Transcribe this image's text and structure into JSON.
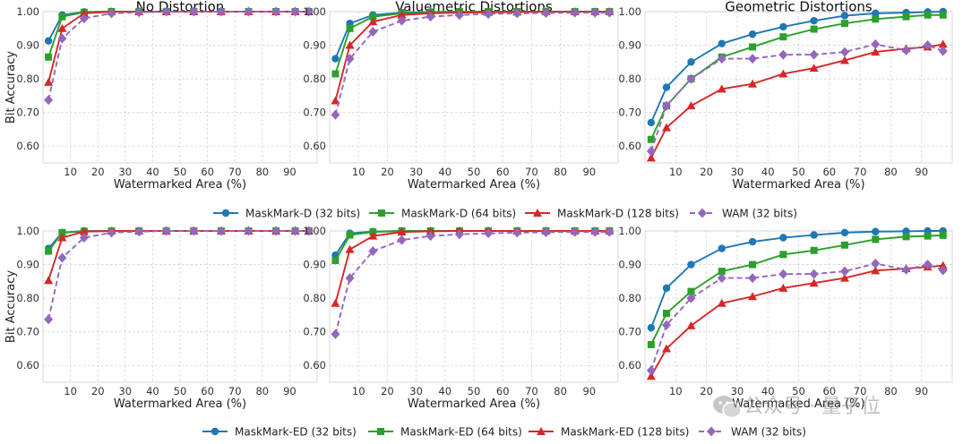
{
  "chart_data": [
    {
      "type": "line",
      "title": "No Distortion",
      "xlabel": "Watermarked Area (%)",
      "ylabel": "Bit Accuracy",
      "xlim": [
        0,
        100
      ],
      "ylim": [
        0.55,
        1.0
      ],
      "grid": true,
      "x": [
        2,
        7,
        15,
        25,
        35,
        45,
        55,
        65,
        75,
        85,
        92,
        97
      ],
      "xticks": [
        "10",
        "20",
        "30",
        "40",
        "50",
        "60",
        "70",
        "80",
        "90"
      ],
      "yticks": [
        "0.60",
        "0.70",
        "0.80",
        "0.90",
        "1.00"
      ],
      "series": [
        {
          "name": "MaskMark-D (32 bits)",
          "values": [
            0.913,
            0.99,
            0.999,
            1.0,
            1.0,
            1.0,
            1.0,
            1.0,
            1.0,
            1.0,
            1.0,
            1.0
          ]
        },
        {
          "name": "MaskMark-D (64 bits)",
          "values": [
            0.865,
            0.985,
            0.998,
            1.0,
            1.0,
            1.0,
            1.0,
            1.0,
            1.0,
            1.0,
            1.0,
            1.0
          ]
        },
        {
          "name": "MaskMark-D (128 bits)",
          "values": [
            0.79,
            0.95,
            0.995,
            1.0,
            1.0,
            1.0,
            1.0,
            1.0,
            1.0,
            1.0,
            1.0,
            1.0
          ]
        },
        {
          "name": "WAM (32 bits)",
          "values": [
            0.737,
            0.92,
            0.98,
            0.995,
            0.998,
            1.0,
            1.0,
            1.0,
            1.0,
            1.0,
            1.0,
            1.0
          ]
        }
      ]
    },
    {
      "type": "line",
      "title": "Valuemetric Distortions",
      "xlabel": "Watermarked Area (%)",
      "ylabel": "",
      "xlim": [
        0,
        100
      ],
      "ylim": [
        0.55,
        1.0
      ],
      "grid": true,
      "x": [
        2,
        7,
        15,
        25,
        35,
        45,
        55,
        65,
        75,
        85,
        92,
        97
      ],
      "xticks": [
        "10",
        "20",
        "30",
        "40",
        "50",
        "60",
        "70",
        "80",
        "90"
      ],
      "yticks": [
        "0.60",
        "0.70",
        "0.80",
        "0.90",
        "1.00"
      ],
      "series": [
        {
          "name": "MaskMark-D (32 bits)",
          "values": [
            0.86,
            0.965,
            0.99,
            0.997,
            0.999,
            1.0,
            1.0,
            1.0,
            1.0,
            1.0,
            1.0,
            1.0
          ]
        },
        {
          "name": "MaskMark-D (64 bits)",
          "values": [
            0.815,
            0.95,
            0.985,
            0.995,
            0.998,
            1.0,
            1.0,
            1.0,
            1.0,
            1.0,
            1.0,
            1.0
          ]
        },
        {
          "name": "MaskMark-D (128 bits)",
          "values": [
            0.735,
            0.9,
            0.97,
            0.99,
            0.995,
            0.997,
            0.998,
            0.999,
            1.0,
            1.0,
            1.0,
            1.0
          ]
        },
        {
          "name": "WAM (32 bits)",
          "values": [
            0.693,
            0.86,
            0.94,
            0.973,
            0.985,
            0.99,
            0.993,
            0.995,
            0.996,
            0.997,
            0.997,
            0.997
          ]
        }
      ]
    },
    {
      "type": "line",
      "title": "Geometric Distortions",
      "xlabel": "Watermarked Area (%)",
      "ylabel": "",
      "xlim": [
        0,
        100
      ],
      "ylim": [
        0.55,
        1.0
      ],
      "grid": true,
      "x": [
        2,
        7,
        15,
        25,
        35,
        45,
        55,
        65,
        75,
        85,
        92,
        97
      ],
      "xticks": [
        "10",
        "20",
        "30",
        "40",
        "50",
        "60",
        "70",
        "80",
        "90"
      ],
      "yticks": [
        "0.60",
        "0.70",
        "0.80",
        "0.90",
        "1.00"
      ],
      "series": [
        {
          "name": "MaskMark-D (32 bits)",
          "values": [
            0.67,
            0.775,
            0.85,
            0.905,
            0.933,
            0.955,
            0.973,
            0.988,
            0.995,
            0.997,
            0.999,
            1.0
          ]
        },
        {
          "name": "MaskMark-D (64 bits)",
          "values": [
            0.62,
            0.72,
            0.8,
            0.865,
            0.895,
            0.925,
            0.948,
            0.965,
            0.978,
            0.985,
            0.99,
            0.99
          ]
        },
        {
          "name": "MaskMark-D (128 bits)",
          "values": [
            0.565,
            0.655,
            0.72,
            0.77,
            0.785,
            0.815,
            0.832,
            0.855,
            0.88,
            0.89,
            0.895,
            0.903
          ]
        },
        {
          "name": "WAM (32 bits)",
          "values": [
            0.585,
            0.72,
            0.8,
            0.86,
            0.86,
            0.872,
            0.872,
            0.88,
            0.903,
            0.885,
            0.9,
            0.883
          ]
        }
      ]
    },
    {
      "type": "line",
      "title": "",
      "xlabel": "Watermarked Area (%)",
      "ylabel": "Bit Accuracy",
      "xlim": [
        0,
        100
      ],
      "ylim": [
        0.55,
        1.0
      ],
      "grid": true,
      "x": [
        2,
        7,
        15,
        25,
        35,
        45,
        55,
        65,
        75,
        85,
        92,
        97
      ],
      "xticks": [
        "10",
        "20",
        "30",
        "40",
        "50",
        "60",
        "70",
        "80",
        "90"
      ],
      "yticks": [
        "0.60",
        "0.70",
        "0.80",
        "0.90",
        "1.00"
      ],
      "series": [
        {
          "name": "MaskMark-ED (32 bits)",
          "values": [
            0.948,
            0.995,
            1.0,
            1.0,
            1.0,
            1.0,
            1.0,
            1.0,
            1.0,
            1.0,
            1.0,
            1.0
          ]
        },
        {
          "name": "MaskMark-ED (64 bits)",
          "values": [
            0.94,
            0.995,
            0.999,
            1.0,
            1.0,
            1.0,
            1.0,
            1.0,
            1.0,
            1.0,
            1.0,
            1.0
          ]
        },
        {
          "name": "MaskMark-ED (128 bits)",
          "values": [
            0.853,
            0.98,
            0.998,
            1.0,
            1.0,
            1.0,
            1.0,
            1.0,
            1.0,
            1.0,
            1.0,
            1.0
          ]
        },
        {
          "name": "WAM (32 bits)",
          "values": [
            0.737,
            0.92,
            0.98,
            0.995,
            0.998,
            1.0,
            1.0,
            1.0,
            1.0,
            1.0,
            1.0,
            1.0
          ]
        }
      ]
    },
    {
      "type": "line",
      "title": "",
      "xlabel": "Watermarked Area (%)",
      "ylabel": "",
      "xlim": [
        0,
        100
      ],
      "ylim": [
        0.55,
        1.0
      ],
      "grid": true,
      "x": [
        2,
        7,
        15,
        25,
        35,
        45,
        55,
        65,
        75,
        85,
        92,
        97
      ],
      "xticks": [
        "10",
        "20",
        "30",
        "40",
        "50",
        "60",
        "70",
        "80",
        "90"
      ],
      "yticks": [
        "0.60",
        "0.70",
        "0.80",
        "0.90",
        "1.00"
      ],
      "series": [
        {
          "name": "MaskMark-ED (32 bits)",
          "values": [
            0.928,
            0.993,
            0.998,
            1.0,
            1.0,
            1.0,
            1.0,
            1.0,
            1.0,
            1.0,
            1.0,
            1.0
          ]
        },
        {
          "name": "MaskMark-ED (64 bits)",
          "values": [
            0.912,
            0.988,
            0.997,
            1.0,
            1.0,
            1.0,
            1.0,
            1.0,
            1.0,
            1.0,
            1.0,
            1.0
          ]
        },
        {
          "name": "MaskMark-ED (128 bits)",
          "values": [
            0.785,
            0.945,
            0.985,
            0.997,
            0.999,
            1.0,
            1.0,
            1.0,
            1.0,
            1.0,
            1.0,
            1.0
          ]
        },
        {
          "name": "WAM (32 bits)",
          "values": [
            0.693,
            0.86,
            0.94,
            0.973,
            0.985,
            0.99,
            0.993,
            0.995,
            0.996,
            0.997,
            0.997,
            0.997
          ]
        }
      ]
    },
    {
      "type": "line",
      "title": "",
      "xlabel": "Watermarked Area (%)",
      "ylabel": "",
      "xlim": [
        0,
        100
      ],
      "ylim": [
        0.55,
        1.0
      ],
      "grid": true,
      "x": [
        2,
        7,
        15,
        25,
        35,
        45,
        55,
        65,
        75,
        85,
        92,
        97
      ],
      "xticks": [
        "10",
        "20",
        "30",
        "40",
        "50",
        "60",
        "70",
        "80",
        "90"
      ],
      "yticks": [
        "0.60",
        "0.70",
        "0.80",
        "0.90",
        "1.00"
      ],
      "series": [
        {
          "name": "MaskMark-ED (32 bits)",
          "values": [
            0.712,
            0.83,
            0.9,
            0.948,
            0.968,
            0.98,
            0.988,
            0.995,
            0.998,
            0.999,
            1.0,
            1.0
          ]
        },
        {
          "name": "MaskMark-ED (64 bits)",
          "values": [
            0.662,
            0.755,
            0.82,
            0.88,
            0.9,
            0.93,
            0.942,
            0.958,
            0.975,
            0.983,
            0.985,
            0.987
          ]
        },
        {
          "name": "MaskMark-ED (128 bits)",
          "values": [
            0.568,
            0.65,
            0.718,
            0.785,
            0.805,
            0.83,
            0.845,
            0.86,
            0.882,
            0.888,
            0.893,
            0.897
          ]
        },
        {
          "name": "WAM (32 bits)",
          "values": [
            0.585,
            0.72,
            0.8,
            0.86,
            0.86,
            0.872,
            0.872,
            0.88,
            0.903,
            0.885,
            0.9,
            0.883
          ]
        }
      ]
    }
  ],
  "legends": {
    "top": [
      {
        "label": "MaskMark-D (32 bits)",
        "color": "#1f77b4",
        "marker": "circle",
        "dashed": false
      },
      {
        "label": "MaskMark-D (64 bits)",
        "color": "#2ca02c",
        "marker": "square",
        "dashed": false
      },
      {
        "label": "MaskMark-D (128 bits)",
        "color": "#d62728",
        "marker": "triangle",
        "dashed": false
      },
      {
        "label": "WAM (32 bits)",
        "color": "#9467bd",
        "marker": "diamond",
        "dashed": true
      }
    ],
    "bottom": [
      {
        "label": "MaskMark-ED (32 bits)",
        "color": "#1f77b4",
        "marker": "circle",
        "dashed": false
      },
      {
        "label": "MaskMark-ED (64 bits)",
        "color": "#2ca02c",
        "marker": "square",
        "dashed": false
      },
      {
        "label": "MaskMark-ED (128 bits)",
        "color": "#d62728",
        "marker": "triangle",
        "dashed": false
      },
      {
        "label": "WAM (32 bits)",
        "color": "#9467bd",
        "marker": "diamond",
        "dashed": true
      }
    ]
  },
  "styles": {
    "colors": [
      "#1f77b4",
      "#2ca02c",
      "#d62728",
      "#9467bd"
    ],
    "markers": [
      "circle",
      "square",
      "triangle",
      "diamond"
    ],
    "dashed": [
      false,
      false,
      false,
      true
    ]
  },
  "watermark": {
    "text": "公众号 · 量子位",
    "icon": "wechat-icon"
  }
}
